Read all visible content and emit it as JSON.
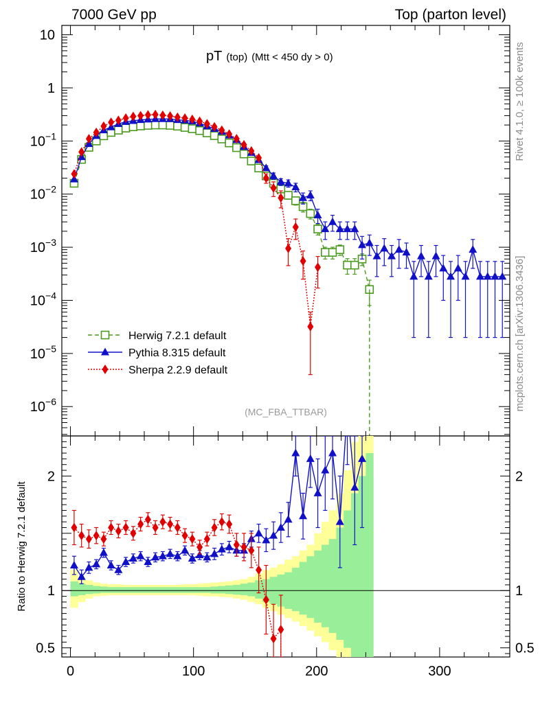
{
  "chart_data": {
    "type": "line",
    "header_left": "7000 GeV pp",
    "header_right": "Top (parton level)",
    "title_main": "pT",
    "title_sub1": "(top)",
    "title_sub2": "(Mtt < 450 dy > 0)",
    "watermark": "(MC_FBA_TTBAR)",
    "side_label_top": "Rivet 4.1.0, ≥ 100k events",
    "side_label_bottom": "mcplots.cern.ch [arXiv:1306.3436]",
    "ratio_ylabel": "Ratio to Herwig 7.2.1 default",
    "main_yscale": "log",
    "main_ylim": [
      2.8e-07,
      15
    ],
    "ratio_ylim": [
      0.42,
      2.35
    ],
    "xlim": [
      -7,
      357
    ],
    "x_ticks": [
      0,
      100,
      200,
      300
    ],
    "main_y_ticks": [
      {
        "value": 10,
        "base": "10",
        "exp": ""
      },
      {
        "value": 1,
        "base": "1",
        "exp": ""
      },
      {
        "value": 0.1,
        "base": "10",
        "exp": "−1"
      },
      {
        "value": 0.01,
        "base": "10",
        "exp": "−2"
      },
      {
        "value": 0.001,
        "base": "10",
        "exp": "−3"
      },
      {
        "value": 0.0001,
        "base": "10",
        "exp": "−4"
      },
      {
        "value": 1e-05,
        "base": "10",
        "exp": "−5"
      },
      {
        "value": 1e-06,
        "base": "10",
        "exp": "−6"
      }
    ],
    "ratio_y_ticks": [
      {
        "value": 0.5,
        "label": "0.5"
      },
      {
        "value": 1,
        "label": "1"
      },
      {
        "value": 2,
        "label": "2"
      }
    ],
    "band_edges": [
      0,
      6,
      12,
      18,
      24,
      30,
      36,
      42,
      48,
      54,
      60,
      66,
      72,
      78,
      84,
      90,
      96,
      102,
      108,
      114,
      120,
      126,
      132,
      138,
      144,
      150,
      156,
      162,
      168,
      174,
      180,
      186,
      192,
      198,
      204,
      210,
      216,
      222,
      228,
      234,
      240,
      246
    ],
    "band_green": [
      [
        0.95,
        1.08
      ],
      [
        0.96,
        1.06
      ],
      [
        0.97,
        1.05
      ],
      [
        0.975,
        1.04
      ],
      [
        0.98,
        1.035
      ],
      [
        0.98,
        1.03
      ],
      [
        0.98,
        1.03
      ],
      [
        0.98,
        1.03
      ],
      [
        0.98,
        1.03
      ],
      [
        0.98,
        1.03
      ],
      [
        0.98,
        1.03
      ],
      [
        0.98,
        1.03
      ],
      [
        0.98,
        1.03
      ],
      [
        0.98,
        1.03
      ],
      [
        0.98,
        1.03
      ],
      [
        0.98,
        1.03
      ],
      [
        0.98,
        1.03
      ],
      [
        0.98,
        1.03
      ],
      [
        0.98,
        1.03
      ],
      [
        0.975,
        1.035
      ],
      [
        0.975,
        1.04
      ],
      [
        0.97,
        1.045
      ],
      [
        0.965,
        1.05
      ],
      [
        0.96,
        1.06
      ],
      [
        0.95,
        1.07
      ],
      [
        0.93,
        1.09
      ],
      [
        0.9,
        1.1
      ],
      [
        0.88,
        1.12
      ],
      [
        0.86,
        1.14
      ],
      [
        0.84,
        1.16
      ],
      [
        0.82,
        1.2
      ],
      [
        0.79,
        1.25
      ],
      [
        0.76,
        1.3
      ],
      [
        0.72,
        1.35
      ],
      [
        0.68,
        1.4
      ],
      [
        0.63,
        1.45
      ],
      [
        0.57,
        1.55
      ],
      [
        0.5,
        1.7
      ],
      [
        0.4,
        1.85
      ],
      [
        0.35,
        2.0
      ],
      [
        0.3,
        2.2
      ]
    ],
    "band_yellow": [
      [
        0.85,
        1.18
      ],
      [
        0.9,
        1.12
      ],
      [
        0.93,
        1.09
      ],
      [
        0.95,
        1.07
      ],
      [
        0.955,
        1.06
      ],
      [
        0.96,
        1.055
      ],
      [
        0.96,
        1.055
      ],
      [
        0.96,
        1.05
      ],
      [
        0.96,
        1.05
      ],
      [
        0.96,
        1.05
      ],
      [
        0.96,
        1.05
      ],
      [
        0.96,
        1.05
      ],
      [
        0.96,
        1.05
      ],
      [
        0.96,
        1.05
      ],
      [
        0.96,
        1.05
      ],
      [
        0.96,
        1.055
      ],
      [
        0.96,
        1.055
      ],
      [
        0.955,
        1.06
      ],
      [
        0.95,
        1.065
      ],
      [
        0.95,
        1.07
      ],
      [
        0.945,
        1.075
      ],
      [
        0.94,
        1.08
      ],
      [
        0.93,
        1.09
      ],
      [
        0.92,
        1.1
      ],
      [
        0.9,
        1.12
      ],
      [
        0.88,
        1.15
      ],
      [
        0.85,
        1.18
      ],
      [
        0.82,
        1.2
      ],
      [
        0.79,
        1.23
      ],
      [
        0.76,
        1.27
      ],
      [
        0.73,
        1.3
      ],
      [
        0.69,
        1.35
      ],
      [
        0.65,
        1.4
      ],
      [
        0.6,
        1.5
      ],
      [
        0.55,
        1.6
      ],
      [
        0.48,
        1.7
      ],
      [
        0.42,
        1.85
      ],
      [
        0.38,
        2.05
      ],
      [
        0.3,
        2.3
      ],
      [
        0.3,
        2.4
      ],
      [
        0.3,
        2.5
      ]
    ],
    "series": [
      {
        "name": "Herwig 7.2.1 default",
        "color": "#4a9a1e",
        "marker": "open-square",
        "dash": "6,4",
        "x": [
          3,
          9,
          15,
          21,
          27,
          33,
          39,
          45,
          51,
          57,
          63,
          69,
          75,
          81,
          87,
          93,
          99,
          105,
          111,
          117,
          123,
          129,
          135,
          141,
          147,
          153,
          159,
          165,
          171,
          177,
          183,
          189,
          195,
          201,
          207,
          213,
          219,
          225,
          231,
          237,
          243
        ],
        "y": [
          0.016,
          0.045,
          0.076,
          0.1,
          0.125,
          0.145,
          0.16,
          0.175,
          0.185,
          0.192,
          0.197,
          0.2,
          0.2,
          0.197,
          0.19,
          0.18,
          0.17,
          0.157,
          0.142,
          0.126,
          0.109,
          0.092,
          0.075,
          0.057,
          0.042,
          0.031,
          0.022,
          0.016,
          0.0125,
          0.0095,
          0.0075,
          0.0058,
          0.0043,
          0.0022,
          0.0008,
          0.0008,
          0.0009,
          0.00046,
          0.00046,
          0.0006,
          0.00016
        ],
        "err": [
          0,
          0,
          0,
          0,
          0,
          0,
          0,
          0,
          0,
          0,
          0,
          0,
          0,
          0,
          0,
          0,
          0,
          0,
          0,
          0,
          0,
          0,
          0,
          0,
          0,
          0,
          0.002,
          0.002,
          0.0017,
          0.0015,
          0.0013,
          0.0012,
          0.0009,
          0.0005,
          0.0002,
          0.0002,
          0.0002,
          0.00015,
          0.00015,
          0.00015,
          8e-05
        ]
      },
      {
        "name": "Pythia 8.315 default",
        "color": "#1010c8",
        "marker": "triangle",
        "dash": "",
        "x": [
          3,
          9,
          15,
          21,
          27,
          33,
          39,
          45,
          51,
          57,
          63,
          69,
          75,
          81,
          87,
          93,
          99,
          105,
          111,
          117,
          123,
          129,
          135,
          141,
          147,
          153,
          159,
          165,
          171,
          177,
          183,
          189,
          195,
          201,
          207,
          213,
          219,
          225,
          231,
          237,
          243,
          249,
          255,
          261,
          267,
          273,
          279,
          285,
          291,
          297,
          303,
          309,
          315,
          321,
          327,
          333,
          339,
          345,
          351
        ],
        "y": [
          0.019,
          0.05,
          0.088,
          0.125,
          0.16,
          0.182,
          0.21,
          0.23,
          0.24,
          0.25,
          0.255,
          0.26,
          0.26,
          0.26,
          0.25,
          0.245,
          0.235,
          0.215,
          0.19,
          0.17,
          0.15,
          0.128,
          0.105,
          0.078,
          0.06,
          0.044,
          0.031,
          0.022,
          0.017,
          0.016,
          0.0135,
          0.0085,
          0.0095,
          0.004,
          0.0022,
          0.003,
          0.0022,
          0.0022,
          0.0022,
          0.0011,
          0.0012,
          0.00068,
          0.00095,
          0.00068,
          0.0009,
          0.0008,
          0.00028,
          0.00068,
          0.00028,
          0.00068,
          0.0004,
          0.00028,
          0.0004,
          0.00028,
          0.0009,
          0.00028,
          0.00028,
          0.00028,
          0.00028
        ],
        "err": [
          0,
          0,
          0,
          0,
          0,
          0,
          0,
          0,
          0,
          0,
          0,
          0,
          0,
          0,
          0,
          0,
          0,
          0,
          0,
          0,
          0,
          0,
          0,
          0,
          0,
          0,
          0.003,
          0.003,
          0.0025,
          0.0025,
          0.0025,
          0.002,
          0.002,
          0.0012,
          0.0008,
          0.001,
          0.0008,
          0.0008,
          0.0008,
          0.0005,
          0.0005,
          0.0004,
          0.0005,
          0.0004,
          0.0005,
          0.0004,
          0.00026,
          0.0004,
          0.00026,
          0.0004,
          0.0003,
          0.00026,
          0.0003,
          0.00026,
          0.0005,
          0.00026,
          0.00026,
          0.00026,
          0.00026
        ]
      },
      {
        "name": "Sherpa 2.2.9 default",
        "color": "#e00000",
        "marker": "diamond",
        "dash": "2,2",
        "x": [
          3,
          9,
          15,
          21,
          27,
          33,
          39,
          45,
          51,
          57,
          63,
          69,
          75,
          81,
          87,
          93,
          99,
          105,
          111,
          117,
          123,
          129,
          135,
          141,
          147,
          153,
          159,
          165,
          171,
          177,
          183,
          189,
          195,
          201
        ],
        "y": [
          0.024,
          0.062,
          0.11,
          0.145,
          0.19,
          0.225,
          0.245,
          0.27,
          0.29,
          0.3,
          0.31,
          0.315,
          0.305,
          0.295,
          0.28,
          0.27,
          0.255,
          0.235,
          0.21,
          0.185,
          0.16,
          0.135,
          0.11,
          0.085,
          0.065,
          0.048,
          0.02,
          0.013,
          0.0085,
          0.00095,
          0.0024,
          0.00055,
          3.2e-05,
          0.00042
        ],
        "err": [
          0,
          0,
          0,
          0,
          0,
          0,
          0,
          0,
          0,
          0,
          0,
          0,
          0,
          0,
          0,
          0,
          0,
          0,
          0,
          0,
          0,
          0,
          0,
          0,
          0,
          0,
          0.004,
          0.004,
          0.003,
          0.0005,
          0.001,
          0.0003,
          2.8e-05,
          0.00025
        ]
      }
    ],
    "ratio_series": [
      {
        "name": "Pythia 8.315 default",
        "x": [
          3,
          9,
          15,
          21,
          27,
          33,
          39,
          45,
          51,
          57,
          63,
          69,
          75,
          81,
          87,
          93,
          99,
          105,
          111,
          117,
          123,
          129,
          135,
          141,
          147,
          153,
          159,
          165,
          171,
          177,
          183,
          189,
          195,
          201,
          207,
          213,
          219,
          225,
          231,
          237
        ],
        "y": [
          1.22,
          1.12,
          1.2,
          1.23,
          1.33,
          1.22,
          1.18,
          1.25,
          1.28,
          1.3,
          1.25,
          1.29,
          1.3,
          1.32,
          1.3,
          1.35,
          1.28,
          1.31,
          1.29,
          1.32,
          1.36,
          1.38,
          1.35,
          1.35,
          1.45,
          1.5,
          1.44,
          1.48,
          1.55,
          1.62,
          2.2,
          1.65,
          2.15,
          1.85,
          2.05,
          2.2,
          1.6,
          2.6,
          1.9,
          2.15
        ],
        "err": [
          0.08,
          0.06,
          0.05,
          0.04,
          0.04,
          0.04,
          0.04,
          0.04,
          0.04,
          0.04,
          0.04,
          0.04,
          0.04,
          0.04,
          0.04,
          0.04,
          0.04,
          0.04,
          0.04,
          0.05,
          0.05,
          0.05,
          0.05,
          0.06,
          0.07,
          0.08,
          0.1,
          0.12,
          0.13,
          0.15,
          0.2,
          0.2,
          0.25,
          0.3,
          0.35,
          0.4,
          0.4,
          0.5,
          0.5,
          0.6
        ]
      },
      {
        "name": "Sherpa 2.2.9 default",
        "x": [
          3,
          9,
          15,
          21,
          27,
          33,
          39,
          45,
          51,
          57,
          63,
          69,
          75,
          81,
          87,
          93,
          99,
          105,
          111,
          117,
          123,
          129,
          135,
          141,
          147,
          153,
          159,
          165,
          171
        ],
        "y": [
          1.55,
          1.48,
          1.45,
          1.48,
          1.45,
          1.55,
          1.52,
          1.55,
          1.5,
          1.58,
          1.62,
          1.55,
          1.6,
          1.58,
          1.55,
          1.48,
          1.45,
          1.38,
          1.45,
          1.55,
          1.6,
          1.58,
          1.4,
          1.38,
          1.35,
          1.18,
          0.92,
          0.58,
          0.66
        ],
        "err": [
          0.15,
          0.1,
          0.08,
          0.07,
          0.06,
          0.06,
          0.06,
          0.06,
          0.06,
          0.06,
          0.06,
          0.06,
          0.06,
          0.06,
          0.06,
          0.06,
          0.06,
          0.06,
          0.06,
          0.07,
          0.07,
          0.08,
          0.1,
          0.12,
          0.15,
          0.2,
          0.3,
          0.3,
          0.3
        ]
      }
    ]
  }
}
